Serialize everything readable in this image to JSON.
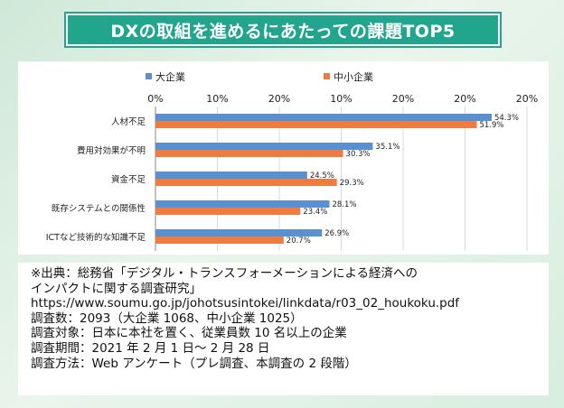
{
  "title": "DXの取組を進めるにあたっての課題TOP5",
  "chart_data": {
    "type": "bar",
    "orientation": "horizontal",
    "categories": [
      "人材不足",
      "費用対効果が不明",
      "資金不足",
      "既存システムとの関係性",
      "ICTなど技術的な知識不足"
    ],
    "series": [
      {
        "name": "大企業",
        "values": [
          54.3,
          35.1,
          24.5,
          28.1,
          26.9
        ],
        "labels": [
          "54.3%",
          "35.1%",
          "24.5%",
          "28.1%",
          "26.9%"
        ],
        "color": "#5b8fd0"
      },
      {
        "name": "中小企業",
        "values": [
          51.9,
          30.3,
          29.3,
          23.4,
          20.7
        ],
        "labels": [
          "51.9%",
          "30.3%",
          "29.3%",
          "23.4%",
          "20.7%"
        ],
        "color": "#ee7b3f"
      }
    ],
    "tick_labels": [
      "0%",
      "10%",
      "20%",
      "10%",
      "20%",
      "20%",
      "20%"
    ],
    "xlim": [
      0,
      60
    ],
    "legend_position": "top-left"
  },
  "source": {
    "line1": "※出典：総務省「デジタル・トランスフォーメーションによる経済への",
    "line2": "インパクトに関する調査研究」",
    "line3": "https://www.soumu.go.jp/johotsusintokei/linkdata/r03_02_houkoku.pdf",
    "line4": "調査数：2093（大企業 1068、中小企業 1025）",
    "line5": "調査対象：日本に本社を置く、従業員数 10 名以上の企業",
    "line6": "調査期間：2021 年 2 月 1 日～ 2 月 28 日",
    "line7": "調査方法：Web アンケート（プレ調査、本調査の 2 段階）"
  }
}
